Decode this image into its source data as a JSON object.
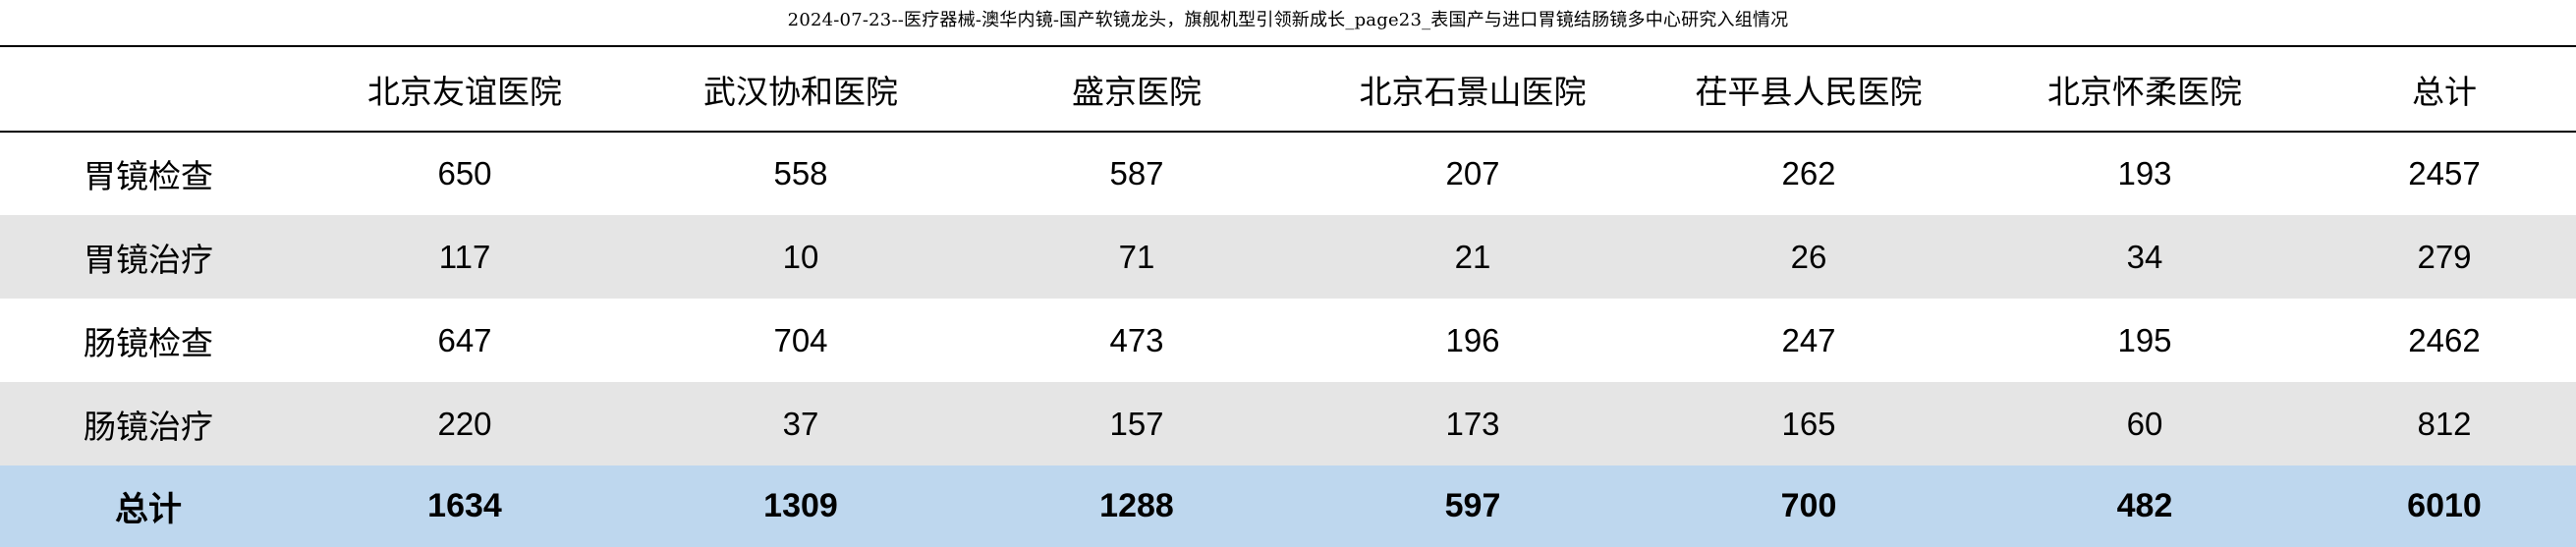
{
  "title": "2024-07-23--医疗器械-澳华内镜-国产软镜龙头，旗舰机型引领新成长_page23_表国产与进口胃镜结肠镜多中心研究入组情况",
  "chart_data": {
    "type": "table",
    "columns": [
      "",
      "北京友谊医院",
      "武汉协和医院",
      "盛京医院",
      "北京石景山医院",
      "茌平县人民医院",
      "北京怀柔医院",
      "总计"
    ],
    "rows": [
      {
        "label": "胃镜检查",
        "values": [
          "650",
          "558",
          "587",
          "207",
          "262",
          "193",
          "2457"
        ]
      },
      {
        "label": "胃镜治疗",
        "values": [
          "117",
          "10",
          "71",
          "21",
          "26",
          "34",
          "279"
        ]
      },
      {
        "label": "肠镜检查",
        "values": [
          "647",
          "704",
          "473",
          "196",
          "247",
          "195",
          "2462"
        ]
      },
      {
        "label": "肠镜治疗",
        "values": [
          "220",
          "37",
          "157",
          "173",
          "165",
          "60",
          "812"
        ]
      }
    ],
    "total_row": {
      "label": "总计",
      "values": [
        "1634",
        "1309",
        "1288",
        "597",
        "700",
        "482",
        "6010"
      ]
    },
    "colors": {
      "striped_row": "#e5e5e5",
      "total_row": "#bed7ee"
    }
  }
}
